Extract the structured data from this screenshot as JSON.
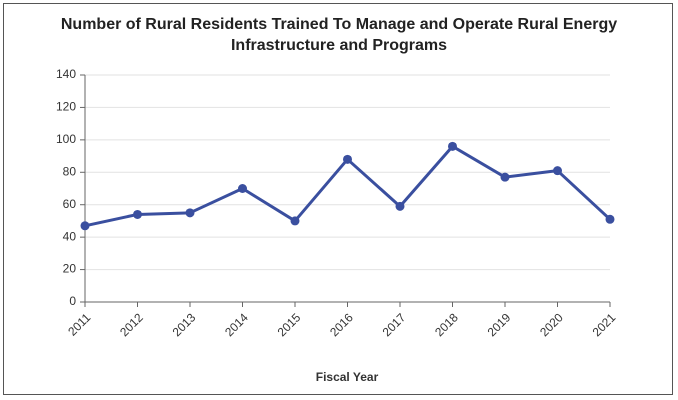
{
  "chart_data": {
    "type": "line",
    "title": "Number of Rural Residents Trained To Manage and Operate Rural Energy Infrastructure and Programs",
    "x_label": "Fiscal Year",
    "categories": [
      "2011",
      "2012",
      "2013",
      "2014",
      "2015",
      "2016",
      "2017",
      "2018",
      "2019",
      "2020",
      "2021"
    ],
    "series": [
      {
        "name": "Rural residents trained",
        "color": "#3a4f9f",
        "values": [
          47,
          54,
          55,
          70,
          50,
          88,
          59,
          96,
          77,
          81,
          51
        ]
      }
    ],
    "ylim": [
      0,
      140
    ],
    "yticks": [
      0,
      20,
      40,
      60,
      80,
      100,
      120,
      140
    ],
    "grid": true
  }
}
